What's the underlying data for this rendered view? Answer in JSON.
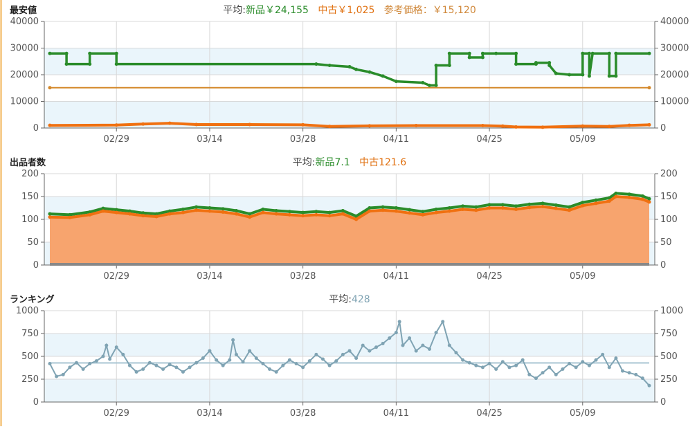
{
  "colors": {
    "new": "#2a8c2a",
    "used": "#f07010",
    "ref": "#d4882a",
    "rank": "#7fa3b3",
    "band": "#eaf5fb",
    "grid": "#d8d8d8",
    "axis": "#666666",
    "left_rule": "#f0b050",
    "usedFill": "#f7a46e",
    "avgOther": "#e07010",
    "refText": "#d0883a"
  },
  "chart_data": [
    {
      "type": "line",
      "title": "最安値",
      "avg_label": "平均:",
      "avg_new": "新品￥24,155",
      "avg_used": "中古￥1,025",
      "avg_ref": "参考価格：￥15,120",
      "x_ticks": [
        "02/29",
        "03/14",
        "03/28",
        "04/11",
        "04/25",
        "05/09"
      ],
      "y_ticks": [
        "0",
        "10000",
        "20000",
        "30000",
        "40000"
      ],
      "ylim": [
        0,
        40000
      ],
      "x_range_days": [
        0,
        90
      ],
      "series": [
        {
          "name": "新品",
          "step": true,
          "points": [
            [
              0,
              28000
            ],
            [
              2.5,
              28000
            ],
            [
              2.5,
              24000
            ],
            [
              6,
              24000
            ],
            [
              6,
              28000
            ],
            [
              10,
              28000
            ],
            [
              10,
              24000
            ],
            [
              40,
              24000
            ],
            [
              42,
              23500
            ],
            [
              45,
              23000
            ],
            [
              46,
              22000
            ],
            [
              48,
              21000
            ],
            [
              50,
              19500
            ],
            [
              52,
              17500
            ],
            [
              56,
              17000
            ],
            [
              57,
              16000
            ],
            [
              58,
              16000
            ],
            [
              58,
              23500
            ],
            [
              60,
              23500
            ],
            [
              60,
              28000
            ],
            [
              63,
              28000
            ],
            [
              63,
              26500
            ],
            [
              65,
              26500
            ],
            [
              65,
              28000
            ],
            [
              67,
              28000
            ],
            [
              70,
              28000
            ],
            [
              70,
              24000
            ],
            [
              73,
              24000
            ],
            [
              73,
              24500
            ],
            [
              75,
              24500
            ],
            [
              75,
              23500
            ],
            [
              76,
              20500
            ],
            [
              78,
              20000
            ],
            [
              80,
              20000
            ],
            [
              80,
              28000
            ],
            [
              81,
              28000
            ],
            [
              81,
              19500
            ],
            [
              81.5,
              28000
            ],
            [
              84,
              28000
            ],
            [
              84,
              19500
            ],
            [
              85,
              19500
            ],
            [
              85,
              28000
            ],
            [
              90,
              28000
            ]
          ]
        },
        {
          "name": "中古",
          "step": false,
          "points": [
            [
              0,
              1000
            ],
            [
              10,
              1100
            ],
            [
              14,
              1500
            ],
            [
              18,
              1800
            ],
            [
              22,
              1300
            ],
            [
              30,
              1300
            ],
            [
              38,
              1200
            ],
            [
              42,
              600
            ],
            [
              48,
              800
            ],
            [
              55,
              900
            ],
            [
              65,
              900
            ],
            [
              68,
              700
            ],
            [
              70,
              400
            ],
            [
              74,
              300
            ],
            [
              80,
              700
            ],
            [
              84,
              600
            ],
            [
              87,
              1000
            ],
            [
              90,
              1200
            ]
          ]
        },
        {
          "name": "参考価格",
          "step": false,
          "points": [
            [
              0,
              15120
            ],
            [
              90,
              15120
            ]
          ]
        }
      ]
    },
    {
      "type": "area",
      "title": "出品者数",
      "avg_label": "平均:",
      "avg_new": "新品7.1",
      "avg_used": "中古121.6",
      "x_ticks": [
        "02/29",
        "03/14",
        "03/28",
        "04/11",
        "04/25",
        "05/09"
      ],
      "y_ticks": [
        "0",
        "50",
        "100",
        "150",
        "200"
      ],
      "ylim": [
        0,
        200
      ],
      "x_range_days": [
        0,
        90
      ],
      "series": [
        {
          "name": "中古",
          "points": [
            [
              0,
              105
            ],
            [
              3,
              104
            ],
            [
              6,
              110
            ],
            [
              8,
              118
            ],
            [
              10,
              115
            ],
            [
              12,
              112
            ],
            [
              14,
              108
            ],
            [
              16,
              106
            ],
            [
              18,
              112
            ],
            [
              20,
              115
            ],
            [
              22,
              120
            ],
            [
              24,
              118
            ],
            [
              26,
              116
            ],
            [
              28,
              112
            ],
            [
              30,
              105
            ],
            [
              32,
              115
            ],
            [
              34,
              112
            ],
            [
              36,
              110
            ],
            [
              38,
              108
            ],
            [
              40,
              110
            ],
            [
              42,
              108
            ],
            [
              44,
              112
            ],
            [
              46,
              100
            ],
            [
              48,
              118
            ],
            [
              50,
              120
            ],
            [
              52,
              118
            ],
            [
              54,
              114
            ],
            [
              56,
              110
            ],
            [
              58,
              115
            ],
            [
              60,
              118
            ],
            [
              62,
              122
            ],
            [
              64,
              120
            ],
            [
              66,
              125
            ],
            [
              68,
              125
            ],
            [
              70,
              122
            ],
            [
              72,
              126
            ],
            [
              74,
              128
            ],
            [
              76,
              124
            ],
            [
              78,
              120
            ],
            [
              80,
              130
            ],
            [
              82,
              135
            ],
            [
              84,
              140
            ],
            [
              85,
              150
            ],
            [
              87,
              148
            ],
            [
              89,
              144
            ],
            [
              90,
              138
            ]
          ]
        },
        {
          "name": "新品",
          "points": [
            [
              0,
              112
            ],
            [
              3,
              110
            ],
            [
              6,
              116
            ],
            [
              8,
              124
            ],
            [
              10,
              121
            ],
            [
              12,
              118
            ],
            [
              14,
              114
            ],
            [
              16,
              112
            ],
            [
              18,
              118
            ],
            [
              20,
              122
            ],
            [
              22,
              127
            ],
            [
              24,
              125
            ],
            [
              26,
              123
            ],
            [
              28,
              119
            ],
            [
              30,
              112
            ],
            [
              32,
              122
            ],
            [
              34,
              119
            ],
            [
              36,
              117
            ],
            [
              38,
              115
            ],
            [
              40,
              117
            ],
            [
              42,
              115
            ],
            [
              44,
              119
            ],
            [
              46,
              107
            ],
            [
              48,
              125
            ],
            [
              50,
              127
            ],
            [
              52,
              125
            ],
            [
              54,
              121
            ],
            [
              56,
              117
            ],
            [
              58,
              122
            ],
            [
              60,
              125
            ],
            [
              62,
              129
            ],
            [
              64,
              127
            ],
            [
              66,
              132
            ],
            [
              68,
              132
            ],
            [
              70,
              129
            ],
            [
              72,
              133
            ],
            [
              74,
              135
            ],
            [
              76,
              131
            ],
            [
              78,
              127
            ],
            [
              80,
              137
            ],
            [
              82,
              142
            ],
            [
              84,
              147
            ],
            [
              85,
              157
            ],
            [
              87,
              155
            ],
            [
              89,
              151
            ],
            [
              90,
              145
            ]
          ]
        }
      ]
    },
    {
      "type": "line",
      "title": "ランキング",
      "avg_label": "平均:",
      "avg_value": "428",
      "x_ticks": [
        "02/29",
        "03/14",
        "03/28",
        "04/11",
        "04/25",
        "05/09"
      ],
      "y_ticks": [
        "0",
        "250",
        "500",
        "750",
        "1000"
      ],
      "ylim": [
        0,
        1000
      ],
      "x_range_days": [
        0,
        90
      ],
      "series": [
        {
          "name": "ランキング",
          "points": [
            [
              0,
              420
            ],
            [
              1,
              280
            ],
            [
              2,
              300
            ],
            [
              3,
              380
            ],
            [
              4,
              430
            ],
            [
              5,
              360
            ],
            [
              6,
              420
            ],
            [
              7,
              450
            ],
            [
              8,
              500
            ],
            [
              8.5,
              620
            ],
            [
              9,
              470
            ],
            [
              10,
              600
            ],
            [
              11,
              520
            ],
            [
              12,
              400
            ],
            [
              13,
              330
            ],
            [
              14,
              360
            ],
            [
              15,
              430
            ],
            [
              16,
              400
            ],
            [
              17,
              360
            ],
            [
              18,
              410
            ],
            [
              19,
              380
            ],
            [
              20,
              330
            ],
            [
              21,
              380
            ],
            [
              22,
              430
            ],
            [
              23,
              480
            ],
            [
              24,
              560
            ],
            [
              25,
              460
            ],
            [
              26,
              400
            ],
            [
              27,
              460
            ],
            [
              27.5,
              680
            ],
            [
              28,
              520
            ],
            [
              29,
              440
            ],
            [
              30,
              560
            ],
            [
              31,
              480
            ],
            [
              32,
              420
            ],
            [
              33,
              360
            ],
            [
              34,
              330
            ],
            [
              35,
              400
            ],
            [
              36,
              460
            ],
            [
              37,
              420
            ],
            [
              38,
              380
            ],
            [
              39,
              450
            ],
            [
              40,
              520
            ],
            [
              41,
              470
            ],
            [
              42,
              400
            ],
            [
              43,
              450
            ],
            [
              44,
              520
            ],
            [
              45,
              560
            ],
            [
              46,
              480
            ],
            [
              47,
              620
            ],
            [
              48,
              560
            ],
            [
              49,
              600
            ],
            [
              50,
              640
            ],
            [
              51,
              700
            ],
            [
              52,
              760
            ],
            [
              52.5,
              880
            ],
            [
              53,
              620
            ],
            [
              54,
              700
            ],
            [
              55,
              560
            ],
            [
              56,
              620
            ],
            [
              57,
              580
            ],
            [
              58,
              760
            ],
            [
              59,
              880
            ],
            [
              60,
              620
            ],
            [
              61,
              540
            ],
            [
              62,
              460
            ],
            [
              63,
              430
            ],
            [
              64,
              400
            ],
            [
              65,
              380
            ],
            [
              66,
              420
            ],
            [
              67,
              360
            ],
            [
              68,
              440
            ],
            [
              69,
              380
            ],
            [
              70,
              400
            ],
            [
              71,
              460
            ],
            [
              72,
              300
            ],
            [
              73,
              260
            ],
            [
              74,
              320
            ],
            [
              75,
              380
            ],
            [
              76,
              300
            ],
            [
              77,
              360
            ],
            [
              78,
              420
            ],
            [
              79,
              380
            ],
            [
              80,
              440
            ],
            [
              81,
              400
            ],
            [
              82,
              460
            ],
            [
              83,
              520
            ],
            [
              84,
              380
            ],
            [
              85,
              480
            ],
            [
              86,
              340
            ],
            [
              87,
              320
            ],
            [
              88,
              300
            ],
            [
              89,
              260
            ],
            [
              90,
              180
            ]
          ]
        },
        {
          "name": "平均",
          "points": [
            [
              0,
              428
            ],
            [
              90,
              428
            ]
          ]
        }
      ]
    }
  ]
}
